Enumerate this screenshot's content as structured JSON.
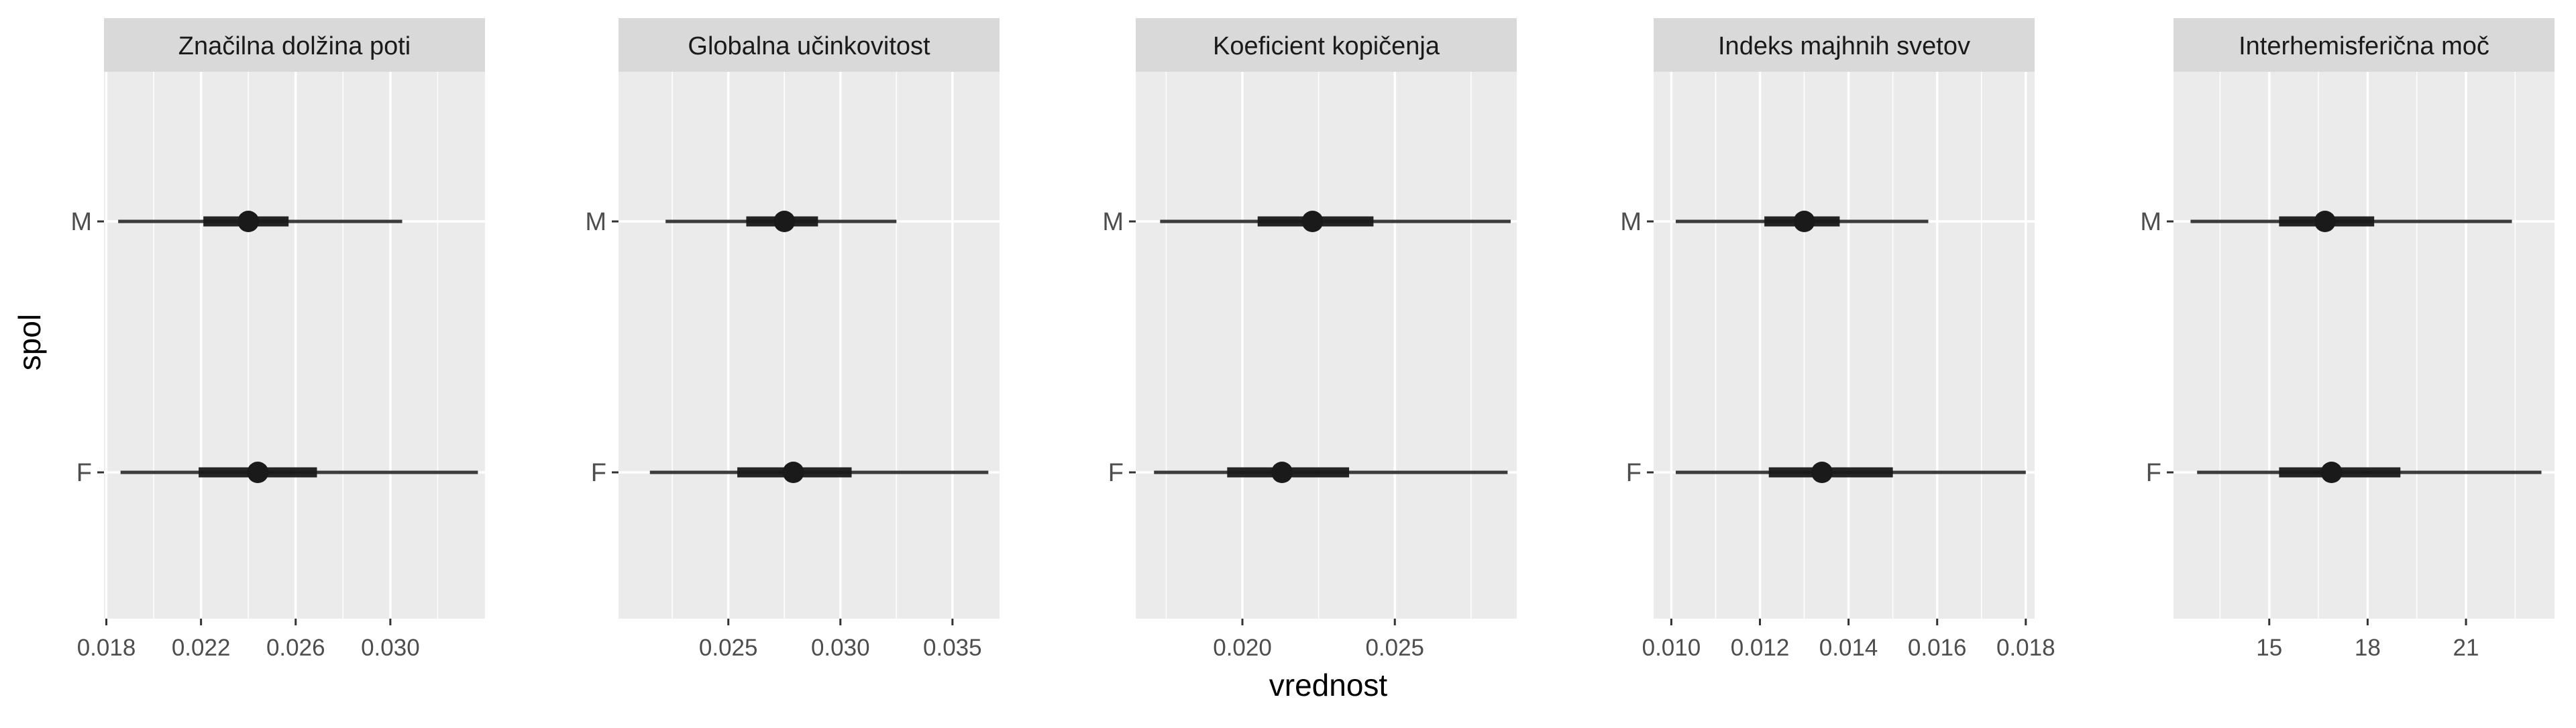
{
  "chart_data": {
    "type": "interval",
    "xlabel": "vrednost",
    "ylabel": "spol",
    "categories": [
      "M",
      "F"
    ],
    "colors": {
      "panel_bg": "#ebebeb",
      "strip_bg": "#d9d9d9",
      "grid": "#ffffff",
      "mark": "#1a1a1a"
    },
    "panels": [
      {
        "title": "Značilna dolžina poti",
        "xlim": [
          0.0179,
          0.034
        ],
        "ticks": [
          0.018,
          0.022,
          0.026,
          0.03
        ],
        "tick_labels": [
          "0.018",
          "0.022",
          "0.026",
          "0.030"
        ],
        "series": [
          {
            "category": "M",
            "point": 0.024,
            "inner": [
              0.0221,
              0.0257
            ],
            "outer": [
              0.0185,
              0.0305
            ]
          },
          {
            "category": "F",
            "point": 0.0244,
            "inner": [
              0.0219,
              0.0269
            ],
            "outer": [
              0.0186,
              0.0337
            ]
          }
        ]
      },
      {
        "title": "Globalna učinkovitost",
        "xlim": [
          0.0201,
          0.0371
        ],
        "ticks": [
          0.025,
          0.03,
          0.035
        ],
        "tick_labels": [
          "0.025",
          "0.030",
          "0.035"
        ],
        "series": [
          {
            "category": "M",
            "point": 0.0275,
            "inner": [
              0.0258,
              0.029
            ],
            "outer": [
              0.0222,
              0.0325
            ]
          },
          {
            "category": "F",
            "point": 0.0279,
            "inner": [
              0.0254,
              0.0305
            ],
            "outer": [
              0.0215,
              0.0366
            ]
          }
        ]
      },
      {
        "title": "Koeficient kopičenja",
        "xlim": [
          0.0165,
          0.029
        ],
        "ticks": [
          0.02,
          0.025
        ],
        "tick_labels": [
          "0.020",
          "0.025"
        ],
        "series": [
          {
            "category": "M",
            "point": 0.0223,
            "inner": [
              0.0205,
              0.0243
            ],
            "outer": [
              0.0173,
              0.0288
            ]
          },
          {
            "category": "F",
            "point": 0.0213,
            "inner": [
              0.0195,
              0.0235
            ],
            "outer": [
              0.0171,
              0.0287
            ]
          }
        ]
      },
      {
        "title": "Indeks majhnih svetov",
        "xlim": [
          0.0096,
          0.0182
        ],
        "ticks": [
          0.01,
          0.012,
          0.014,
          0.016,
          0.018
        ],
        "tick_labels": [
          "0.010",
          "0.012",
          "0.014",
          "0.016",
          "0.018"
        ],
        "series": [
          {
            "category": "M",
            "point": 0.013,
            "inner": [
              0.0121,
              0.0138
            ],
            "outer": [
              0.0101,
              0.0158
            ]
          },
          {
            "category": "F",
            "point": 0.0134,
            "inner": [
              0.0122,
              0.015
            ],
            "outer": [
              0.0101,
              0.018
            ]
          }
        ]
      },
      {
        "title": "Interhemisferična moč",
        "xlim": [
          12.08,
          23.7
        ],
        "ticks": [
          15,
          18,
          21
        ],
        "tick_labels": [
          "15",
          "18",
          "21"
        ],
        "series": [
          {
            "category": "M",
            "point": 16.7,
            "inner": [
              15.3,
              18.2
            ],
            "outer": [
              12.6,
              22.4
            ]
          },
          {
            "category": "F",
            "point": 16.9,
            "inner": [
              15.3,
              19.0
            ],
            "outer": [
              12.8,
              23.3
            ]
          }
        ]
      }
    ]
  }
}
